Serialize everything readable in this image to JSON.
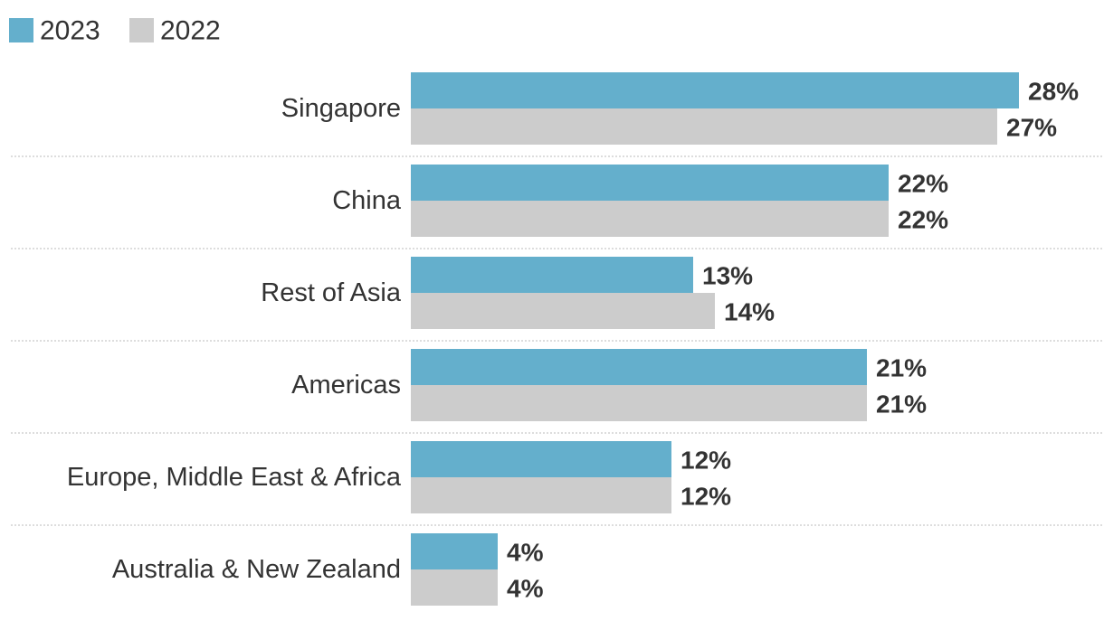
{
  "chart_data": {
    "type": "bar",
    "orientation": "horizontal",
    "categories": [
      "Singapore",
      "China",
      "Rest of Asia",
      "Americas",
      "Europe, Middle East & Africa",
      "Australia & New Zealand"
    ],
    "series": [
      {
        "name": "2023",
        "color": "#64afcc",
        "values": [
          28,
          22,
          13,
          21,
          12,
          4
        ],
        "value_labels": [
          "28%",
          "22%",
          "13%",
          "21%",
          "12%",
          "4%"
        ]
      },
      {
        "name": "2022",
        "color": "#cccccc",
        "values": [
          27,
          22,
          14,
          21,
          12,
          4
        ],
        "value_labels": [
          "27%",
          "22%",
          "14%",
          "21%",
          "12%",
          "4%"
        ]
      }
    ]
  }
}
